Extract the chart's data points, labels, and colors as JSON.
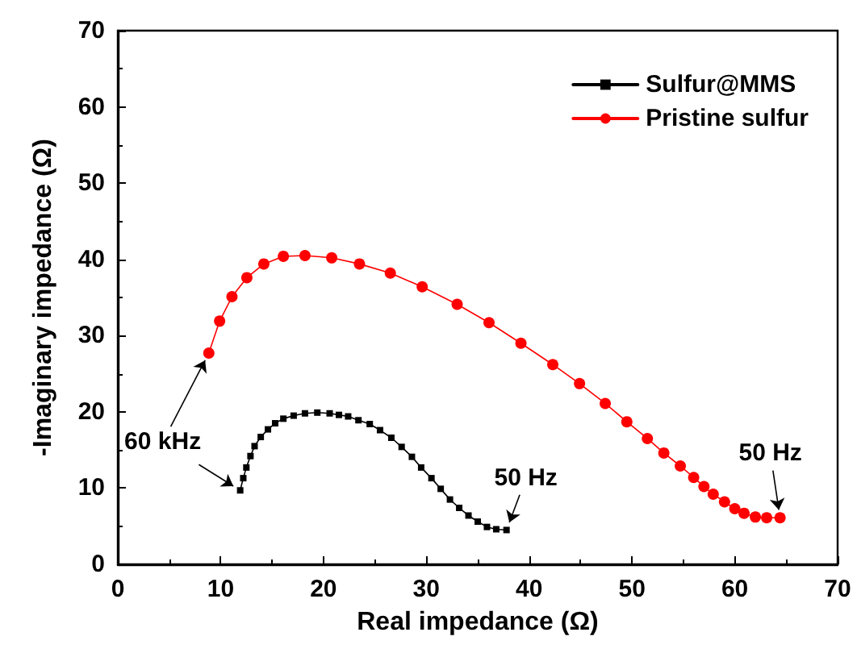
{
  "chart_data": {
    "type": "line",
    "xlabel": "Real impedance (Ω)",
    "ylabel": "-Imaginary impedance (Ω)",
    "xlim": [
      0,
      70
    ],
    "xticks": [
      0,
      10,
      20,
      30,
      40,
      50,
      60,
      70
    ],
    "ylim": [
      0,
      70
    ],
    "yticks": [
      0,
      10,
      20,
      30,
      40,
      50,
      60,
      70
    ],
    "grid": false,
    "legend": "top right",
    "series": [
      {
        "name": "Sulfur@MMS",
        "color": "#000000",
        "marker": "square",
        "x": [
          11.9,
          12.2,
          12.5,
          12.9,
          13.3,
          13.9,
          14.6,
          15.3,
          16.1,
          17.1,
          18.2,
          19.4,
          20.6,
          21.5,
          22.4,
          23.4,
          24.5,
          25.5,
          26.6,
          27.6,
          28.6,
          29.5,
          30.5,
          31.4,
          32.3,
          33.2,
          34.1,
          35.0,
          35.9,
          36.8,
          37.8
        ],
        "values": [
          9.7,
          11.3,
          12.7,
          14.2,
          15.5,
          16.7,
          17.7,
          18.5,
          19.1,
          19.5,
          19.8,
          19.9,
          19.8,
          19.6,
          19.4,
          18.9,
          18.4,
          17.6,
          16.6,
          15.4,
          14.1,
          12.7,
          11.3,
          9.9,
          8.5,
          7.4,
          6.4,
          5.6,
          4.9,
          4.6,
          4.5
        ]
      },
      {
        "name": "Pristine sulfur",
        "color": "#ff0000",
        "marker": "circle",
        "x": [
          8.85,
          9.9,
          11.1,
          12.55,
          14.2,
          16.1,
          18.2,
          20.8,
          23.5,
          26.5,
          29.6,
          33.0,
          36.1,
          39.2,
          42.3,
          44.9,
          47.4,
          49.5,
          51.5,
          53.1,
          54.7,
          56.0,
          57.0,
          57.9,
          59.0,
          60.0,
          60.9,
          62.0,
          63.1,
          64.4
        ],
        "values": [
          27.7,
          31.9,
          35.1,
          37.6,
          39.4,
          40.4,
          40.5,
          40.2,
          39.4,
          38.2,
          36.4,
          34.1,
          31.7,
          29.0,
          26.2,
          23.7,
          21.1,
          18.7,
          16.5,
          14.6,
          12.9,
          11.4,
          10.2,
          9.2,
          8.2,
          7.3,
          6.7,
          6.2,
          6.1,
          6.1
        ]
      }
    ],
    "annotations": [
      {
        "text": "60 kHz",
        "x": 11.9,
        "y": 9.7
      },
      {
        "text": "50 Hz",
        "x": 37.8,
        "y": 4.5
      },
      {
        "text": "50 Hz",
        "x": 64.4,
        "y": 6.1
      }
    ]
  }
}
